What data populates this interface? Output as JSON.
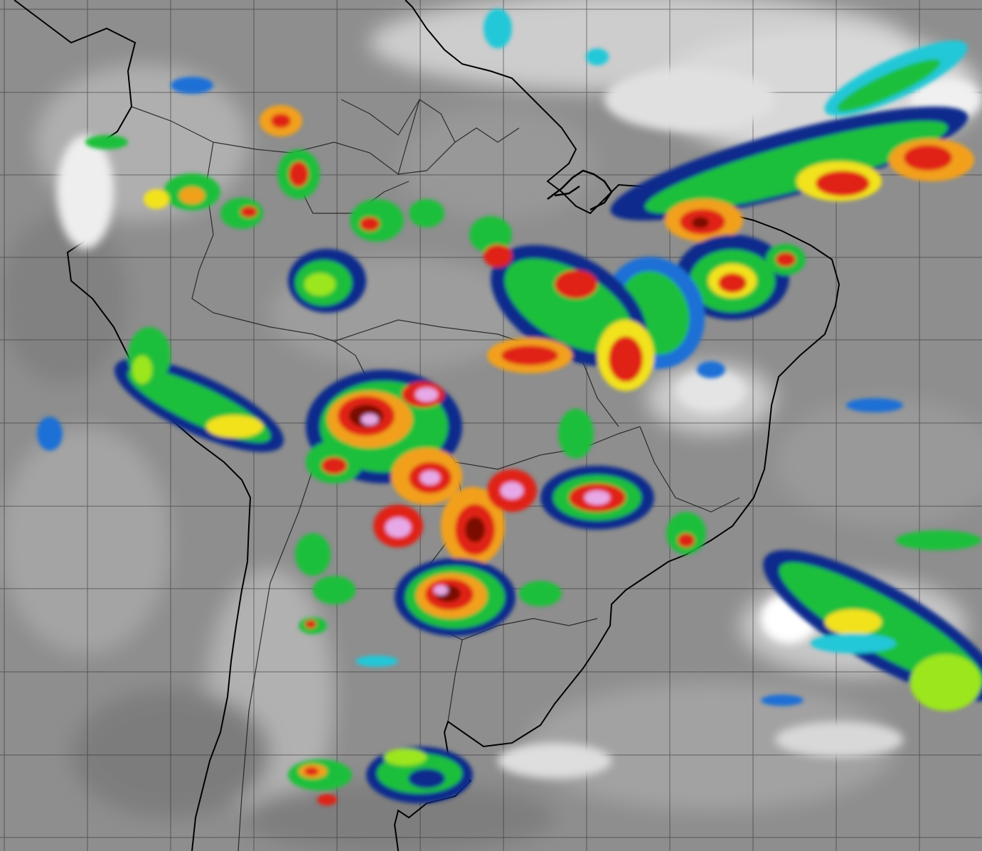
{
  "map": {
    "kind": "satellite-infrared-enhanced",
    "region": "South America",
    "background_colors": {
      "cloud_bright": "#f2f2f2",
      "cloud_mid": "#c9c9c9",
      "surface": "#8e8e8e",
      "surface_dark": "#6f6f6f"
    },
    "coastline_color": "#000000",
    "border_color": "#1a1a1a",
    "grid_color": "#2a2a2a",
    "enhancement_palette": [
      "#0a2a8c",
      "#1f6fd6",
      "#22c7d8",
      "#1fbf3a",
      "#9be61e",
      "#f2e21c",
      "#f2a01c",
      "#e02418",
      "#7a0c06",
      "#2a1a1a",
      "#e6a8e6",
      "#f2f2f2"
    ]
  }
}
